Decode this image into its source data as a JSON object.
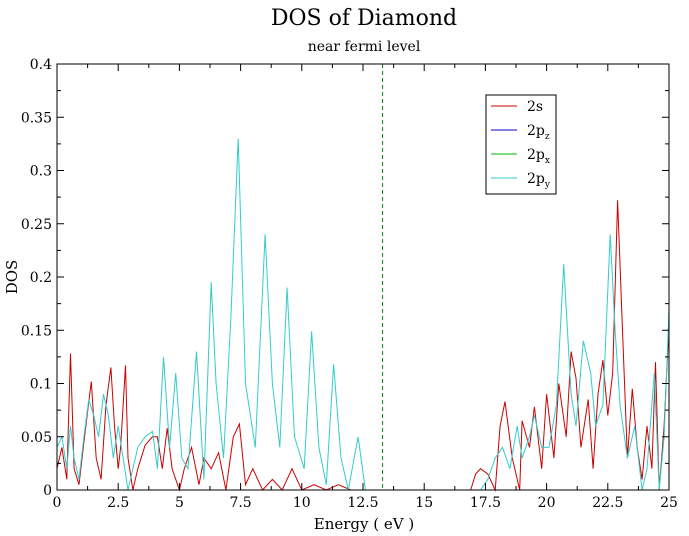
{
  "chart_data": {
    "type": "line",
    "title": "DOS of Diamond",
    "subtitle": "near fermi level",
    "xlabel": "Energy ( eV )",
    "ylabel": "DOS",
    "xlim": [
      0,
      25
    ],
    "ylim": [
      0,
      0.4
    ],
    "x_ticks": [
      "0",
      "2.5",
      "5",
      "7.5",
      "10",
      "12.5",
      "15",
      "17.5",
      "20",
      "22.5",
      "25"
    ],
    "y_ticks": [
      "0",
      "0.05",
      "0.1",
      "0.15",
      "0.2",
      "0.25",
      "0.3",
      "0.35",
      "0.4"
    ],
    "fermi_level": 13.3,
    "grid": false,
    "legend_position": "top-right",
    "legend": [
      {
        "base": "2s",
        "sub": "",
        "color": "#cc0000"
      },
      {
        "base": "2p",
        "sub": "z",
        "color": "#0000cc"
      },
      {
        "base": "2p",
        "sub": "x",
        "color": "#00bb00"
      },
      {
        "base": "2p",
        "sub": "y",
        "color": "#33cccc"
      }
    ],
    "series": [
      {
        "name": "2s",
        "color": "#cc0000",
        "x": [
          0,
          0.2,
          0.4,
          0.55,
          0.7,
          0.9,
          1.1,
          1.4,
          1.6,
          1.8,
          2.0,
          2.2,
          2.35,
          2.5,
          2.6,
          2.8,
          2.9,
          3.1,
          3.3,
          3.6,
          3.9,
          4.1,
          4.3,
          4.5,
          4.7,
          5.0,
          5.2,
          5.5,
          5.8,
          6.0,
          6.3,
          6.6,
          6.9,
          7.2,
          7.45,
          7.7,
          8.0,
          8.4,
          8.8,
          9.2,
          9.6,
          10.0,
          10.5,
          11.0,
          11.5,
          12.0,
          12.5,
          13.0,
          13.3,
          16.9,
          17.1,
          17.3,
          17.6,
          17.9,
          18.1,
          18.3,
          18.6,
          18.9,
          19.0,
          19.3,
          19.5,
          19.8,
          20.0,
          20.3,
          20.5,
          20.8,
          21.0,
          21.2,
          21.4,
          21.7,
          21.9,
          22.1,
          22.3,
          22.5,
          22.7,
          22.9,
          23.1,
          23.3,
          23.5,
          23.7,
          23.9,
          24.1,
          24.3,
          24.45,
          24.6,
          24.8,
          25.0
        ],
        "values": [
          0.02,
          0.04,
          0.01,
          0.128,
          0.02,
          0.005,
          0.045,
          0.102,
          0.03,
          0.01,
          0.08,
          0.115,
          0.06,
          0.02,
          0.04,
          0.117,
          0.03,
          0.0,
          0.02,
          0.042,
          0.05,
          0.05,
          0.02,
          0.058,
          0.02,
          0.0,
          0.02,
          0.04,
          0.005,
          0.03,
          0.02,
          0.035,
          0.0,
          0.05,
          0.062,
          0.005,
          0.02,
          0.0,
          0.01,
          0.0,
          0.02,
          0.0,
          0.005,
          0.0,
          0.005,
          0.0,
          0.0,
          0.0,
          0.0,
          0.0,
          0.015,
          0.02,
          0.015,
          0.0,
          0.06,
          0.083,
          0.03,
          0.0,
          0.065,
          0.04,
          0.078,
          0.02,
          0.09,
          0.03,
          0.1,
          0.05,
          0.13,
          0.105,
          0.04,
          0.085,
          0.02,
          0.09,
          0.122,
          0.07,
          0.11,
          0.272,
          0.15,
          0.03,
          0.095,
          0.04,
          0.01,
          0.06,
          0.02,
          0.12,
          0.0,
          0.06,
          0.155
        ]
      },
      {
        "name": "2p",
        "color": "#33cccc",
        "x": [
          0,
          0.2,
          0.4,
          0.55,
          0.7,
          0.9,
          1.1,
          1.3,
          1.5,
          1.7,
          1.9,
          2.1,
          2.3,
          2.5,
          2.7,
          2.9,
          3.1,
          3.3,
          3.6,
          3.9,
          4.1,
          4.35,
          4.6,
          4.85,
          5.1,
          5.35,
          5.7,
          6.0,
          6.3,
          6.5,
          6.8,
          7.1,
          7.4,
          7.7,
          8.1,
          8.5,
          8.8,
          9.1,
          9.4,
          9.7,
          10.1,
          10.4,
          10.7,
          11.0,
          11.3,
          11.6,
          11.9,
          12.3,
          12.6,
          12.9,
          13.2,
          13.3,
          17.3,
          17.6,
          17.9,
          18.2,
          18.5,
          18.8,
          19.0,
          19.3,
          19.5,
          19.8,
          20.1,
          20.4,
          20.7,
          21.0,
          21.2,
          21.5,
          21.8,
          22.0,
          22.3,
          22.6,
          22.8,
          23.0,
          23.3,
          23.6,
          23.9,
          24.1,
          24.4,
          24.6,
          24.8,
          25.0
        ],
        "values": [
          0.04,
          0.05,
          0.02,
          0.06,
          0.03,
          0.01,
          0.05,
          0.085,
          0.07,
          0.05,
          0.09,
          0.07,
          0.03,
          0.06,
          0.03,
          0.0,
          0.02,
          0.04,
          0.05,
          0.055,
          0.02,
          0.125,
          0.04,
          0.11,
          0.03,
          0.02,
          0.13,
          0.01,
          0.195,
          0.1,
          0.03,
          0.16,
          0.33,
          0.1,
          0.04,
          0.24,
          0.1,
          0.04,
          0.19,
          0.05,
          0.02,
          0.149,
          0.04,
          0.005,
          0.118,
          0.03,
          0.0,
          0.05,
          0.0,
          0.0,
          0.0,
          0.0,
          0.0,
          0.01,
          0.03,
          0.04,
          0.02,
          0.06,
          0.03,
          0.05,
          0.07,
          0.04,
          0.04,
          0.08,
          0.212,
          0.09,
          0.06,
          0.14,
          0.11,
          0.06,
          0.08,
          0.24,
          0.15,
          0.08,
          0.03,
          0.06,
          0.0,
          0.02,
          0.11,
          0.0,
          0.05,
          0.17
        ]
      }
    ]
  }
}
